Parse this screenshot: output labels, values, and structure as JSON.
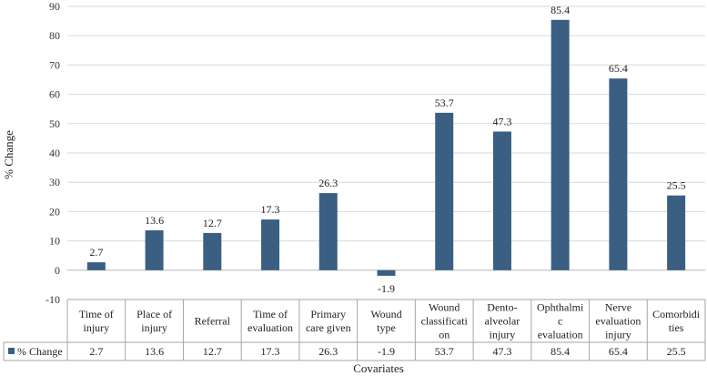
{
  "chart_data": {
    "type": "bar",
    "title": "",
    "xlabel": "Covariates",
    "ylabel": "% Change",
    "ylim": [
      -10,
      90
    ],
    "yticks": [
      -10,
      0,
      10,
      20,
      30,
      40,
      50,
      60,
      70,
      80,
      90
    ],
    "grid": true,
    "categories": [
      [
        "Time of",
        "injury"
      ],
      [
        "Place of",
        "injury"
      ],
      [
        "Referral"
      ],
      [
        "Time of",
        "evaluation"
      ],
      [
        "Primary",
        "care given"
      ],
      [
        "Wound",
        "type"
      ],
      [
        "Wound",
        "classificati",
        "on"
      ],
      [
        "Dento-",
        "alveolar",
        "injury"
      ],
      [
        "Ophthalmi",
        "c",
        "evaluation"
      ],
      [
        "Nerve",
        "evaluation",
        "injury"
      ],
      [
        "Comorbidi",
        "ties"
      ]
    ],
    "series": [
      {
        "name": "% Change",
        "color": "#3a5f82",
        "values": [
          2.7,
          13.6,
          12.7,
          17.3,
          26.3,
          -1.9,
          53.7,
          47.3,
          85.4,
          65.4,
          25.5
        ],
        "labels": [
          "2.7",
          "13.6",
          "12.7",
          "17.3",
          "26.3",
          "-1.9",
          "53.7",
          "47.3",
          "85.4",
          "65.4",
          "25.5"
        ]
      }
    ]
  }
}
